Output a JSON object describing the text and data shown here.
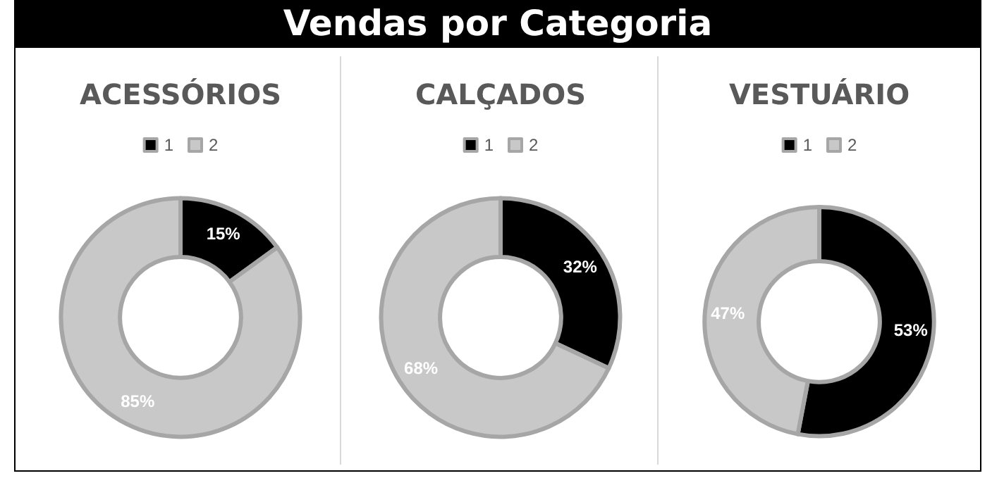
{
  "chart_data": [
    {
      "type": "other",
      "title": "Vendas por Categoria"
    },
    {
      "type": "donut",
      "title": "ACESSÓRIOS",
      "categories": [
        "1",
        "2"
      ],
      "values": [
        15,
        85
      ],
      "colors": [
        "#000000",
        "#c8c8c8"
      ],
      "value_labels": [
        "15%",
        "85%"
      ],
      "legend": "top"
    },
    {
      "type": "donut",
      "title": "CALÇADOS",
      "categories": [
        "1",
        "2"
      ],
      "values": [
        32,
        68
      ],
      "colors": [
        "#000000",
        "#c8c8c8"
      ],
      "value_labels": [
        "32%",
        "68%"
      ],
      "legend": "top"
    },
    {
      "type": "donut",
      "title": "VESTUÁRIO",
      "categories": [
        "1",
        "2"
      ],
      "values": [
        53,
        47
      ],
      "colors": [
        "#000000",
        "#c8c8c8"
      ],
      "value_labels": [
        "53%",
        "47%"
      ],
      "legend": "top"
    }
  ]
}
